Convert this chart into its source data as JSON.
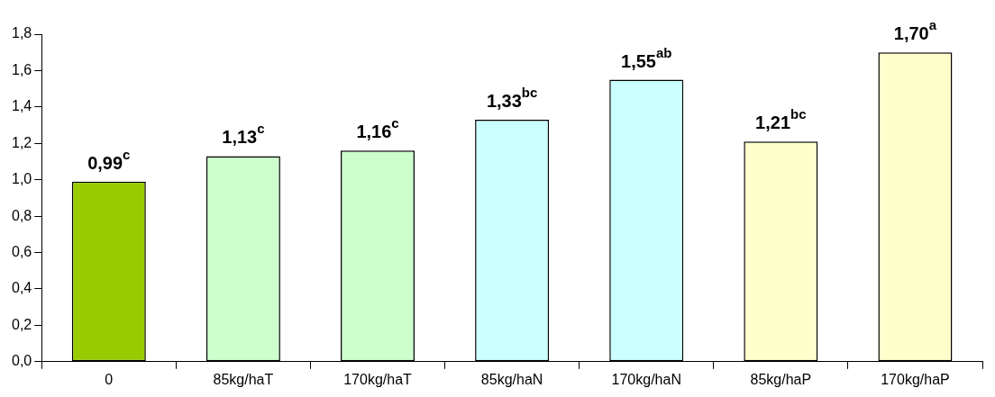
{
  "chart_data": {
    "type": "bar",
    "categories": [
      "0",
      "85kg/haT",
      "170kg/haT",
      "85kg/haN",
      "170kg/haN",
      "85kg/haP",
      "170kg/haP"
    ],
    "values": [
      0.99,
      1.13,
      1.16,
      1.33,
      1.55,
      1.21,
      1.7
    ],
    "colors": [
      "#99cc00",
      "#ccffcc",
      "#ccffcc",
      "#ccffff",
      "#ccffff",
      "#ffffcc",
      "#ffffcc"
    ],
    "value_labels": [
      "0,99$^{c}$",
      "1,13$^{c}$",
      "1,16$^{c}$",
      "1,33$^{bc}$",
      "1,55$^{ab}$",
      "1,21$^{bc}$",
      "1,70$^{a}$"
    ],
    "ylim": [
      0,
      1.8
    ],
    "yticks": [
      {
        "value": 0,
        "label": "0,0"
      },
      {
        "value": 0.2,
        "label": "0,2"
      },
      {
        "value": 0.4,
        "label": "0,4"
      },
      {
        "value": 0.6,
        "label": "0,6"
      },
      {
        "value": 0.8,
        "label": "0,8"
      },
      {
        "value": 1.0,
        "label": "1,0"
      },
      {
        "value": 1.2,
        "label": "1,2"
      },
      {
        "value": 1.4,
        "label": "1,4"
      },
      {
        "value": 1.6,
        "label": "1,6"
      },
      {
        "value": 1.8,
        "label": "1,8"
      }
    ],
    "grid": false,
    "legend": false
  }
}
